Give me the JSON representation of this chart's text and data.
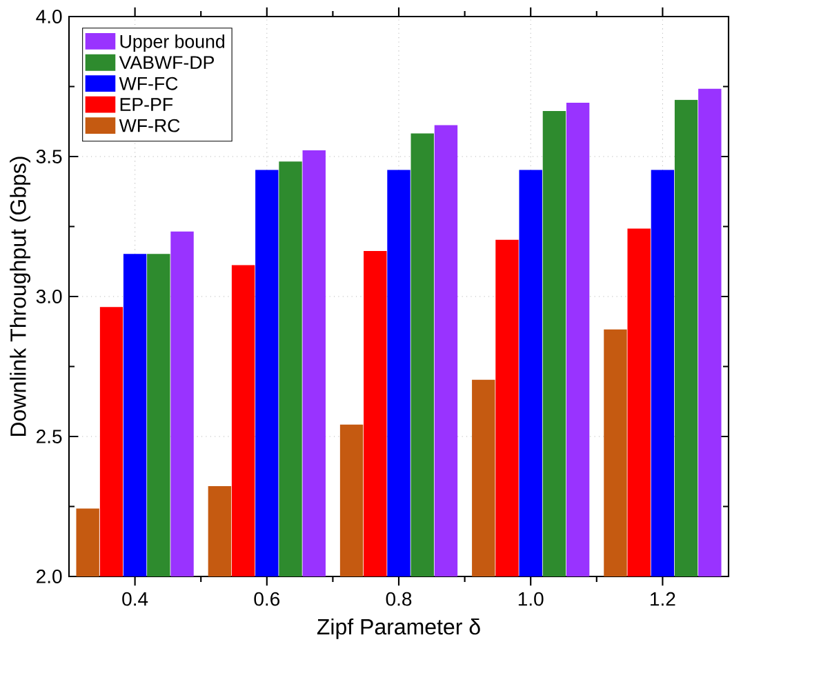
{
  "chart_data": {
    "type": "bar",
    "xlabel": "Zipf Parameter δ",
    "ylabel": "Downlink Throughput (Gbps)",
    "x": [
      0.4,
      0.6,
      0.8,
      1.0,
      1.2
    ],
    "series": [
      {
        "name": "WF-RC",
        "color": "#c55a11",
        "values": [
          2.24,
          2.32,
          2.54,
          2.7,
          2.88
        ]
      },
      {
        "name": "EP-PF",
        "color": "#ff0000",
        "values": [
          2.96,
          3.11,
          3.16,
          3.2,
          3.24
        ]
      },
      {
        "name": "WF-FC",
        "color": "#0000ff",
        "values": [
          3.15,
          3.45,
          3.45,
          3.45,
          3.45
        ]
      },
      {
        "name": "VABWF-DP",
        "color": "#2e8b2e",
        "values": [
          3.15,
          3.48,
          3.58,
          3.66,
          3.7
        ]
      },
      {
        "name": "Upper bound",
        "color": "#9933ff",
        "values": [
          3.23,
          3.52,
          3.61,
          3.69,
          3.74
        ]
      }
    ],
    "xlim": [
      0.3,
      1.3
    ],
    "xticks": [
      0.4,
      {
        "value": 0.5,
        "label": null
      },
      0.6,
      {
        "value": 0.7,
        "label": null
      },
      0.8,
      {
        "value": 0.9,
        "label": null
      },
      {
        "value": 1.0,
        "label": "1.0"
      },
      {
        "value": 1.1,
        "label": null
      },
      1.2
    ],
    "ylim": [
      2.0,
      4.0
    ],
    "yticks": [
      {
        "value": 2.0,
        "label": "2.0"
      },
      {
        "value": 2.25,
        "label": null
      },
      2.5,
      {
        "value": 2.75,
        "label": null
      },
      {
        "value": 3.0,
        "label": "3.0"
      },
      {
        "value": 3.25,
        "label": null
      },
      3.5,
      {
        "value": 3.75,
        "label": null
      },
      {
        "value": 4.0,
        "label": "4.0"
      }
    ],
    "grid": true,
    "legend": "top left"
  }
}
